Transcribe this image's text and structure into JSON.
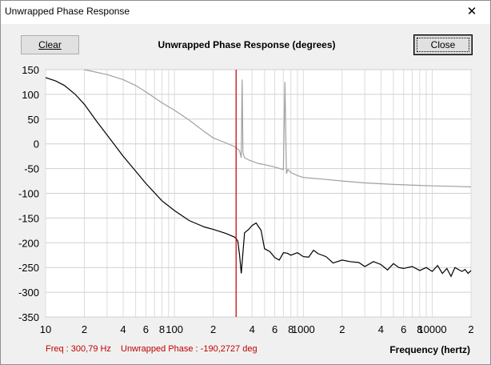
{
  "window": {
    "title": "Unwrapped Phase Response",
    "close_glyph": "✕"
  },
  "toolbar": {
    "clear_label": "Clear",
    "close_label": "Close"
  },
  "plot_title": "Unwrapped Phase Response (degrees)",
  "status": {
    "freq": "Freq : 300,79 Hz",
    "phase": "Unwrapped Phase : -190,2727 deg"
  },
  "x_axis_title": "Frequency (hertz)",
  "chart_data": {
    "type": "line",
    "title": "Unwrapped Phase Response (degrees)",
    "xlabel": "Frequency (hertz)",
    "ylabel": "",
    "x_scale": "log",
    "xlim": [
      10,
      20000
    ],
    "ylim": [
      -350,
      150
    ],
    "y_ticks": [
      150,
      100,
      50,
      0,
      -50,
      -100,
      -150,
      -200,
      -250,
      -300,
      -350
    ],
    "x_ticks": [
      {
        "value": 10,
        "label": "10"
      },
      {
        "value": 20,
        "label": "2"
      },
      {
        "value": 40,
        "label": "4"
      },
      {
        "value": 60,
        "label": "6"
      },
      {
        "value": 80,
        "label": "8"
      },
      {
        "value": 100,
        "label": "100"
      },
      {
        "value": 200,
        "label": "2"
      },
      {
        "value": 400,
        "label": "4"
      },
      {
        "value": 600,
        "label": "6"
      },
      {
        "value": 800,
        "label": "8"
      },
      {
        "value": 1000,
        "label": "1000"
      },
      {
        "value": 2000,
        "label": "2"
      },
      {
        "value": 4000,
        "label": "4"
      },
      {
        "value": 6000,
        "label": "6"
      },
      {
        "value": 8000,
        "label": "8"
      },
      {
        "value": 10000,
        "label": "10000"
      },
      {
        "value": 20000,
        "label": "2"
      }
    ],
    "grid": true,
    "cursor": {
      "x": 300.79,
      "color": "#c00000"
    },
    "series": [
      {
        "color": "#000000",
        "x": [
          10,
          12,
          14,
          17,
          20,
          25,
          30,
          40,
          50,
          60,
          80,
          100,
          130,
          170,
          200,
          250,
          290,
          300,
          310,
          320,
          330,
          350,
          380,
          400,
          430,
          470,
          500,
          550,
          600,
          650,
          700,
          750,
          800,
          900,
          1000,
          1100,
          1200,
          1300,
          1500,
          1700,
          2000,
          2300,
          2700,
          3000,
          3500,
          4000,
          4500,
          5000,
          5500,
          6000,
          7000,
          8000,
          9000,
          10000,
          11000,
          12000,
          13000,
          14000,
          15000,
          17000,
          18000,
          19000,
          20000
        ],
        "y": [
          134,
          127,
          118,
          100,
          80,
          45,
          18,
          -25,
          -55,
          -80,
          -115,
          -135,
          -155,
          -168,
          -173,
          -181,
          -188,
          -191,
          -197,
          -225,
          -262,
          -180,
          -172,
          -165,
          -160,
          -175,
          -212,
          -218,
          -230,
          -235,
          -220,
          -221,
          -225,
          -220,
          -228,
          -229,
          -215,
          -222,
          -228,
          -241,
          -235,
          -238,
          -240,
          -248,
          -238,
          -244,
          -255,
          -242,
          -250,
          -252,
          -248,
          -256,
          -250,
          -258,
          -246,
          -262,
          -252,
          -268,
          -250,
          -258,
          -254,
          -262,
          -256
        ]
      },
      {
        "color": "#a0a0a0",
        "x": [
          20,
          30,
          40,
          50,
          60,
          80,
          100,
          130,
          170,
          200,
          250,
          300,
          320,
          330,
          335,
          340,
          350,
          380,
          450,
          500,
          600,
          700,
          720,
          740,
          760,
          800,
          900,
          1000,
          1500,
          2000,
          3000,
          5000,
          8000,
          10000,
          15000,
          20000
        ],
        "y": [
          150,
          140,
          130,
          118,
          105,
          83,
          68,
          48,
          25,
          12,
          2,
          -7,
          -14,
          -28,
          130,
          -18,
          -28,
          -33,
          -40,
          -42,
          -47,
          -52,
          125,
          -60,
          -52,
          -58,
          -64,
          -68,
          -72,
          -75,
          -79,
          -82,
          -84,
          -85,
          -86,
          -87
        ]
      }
    ]
  }
}
